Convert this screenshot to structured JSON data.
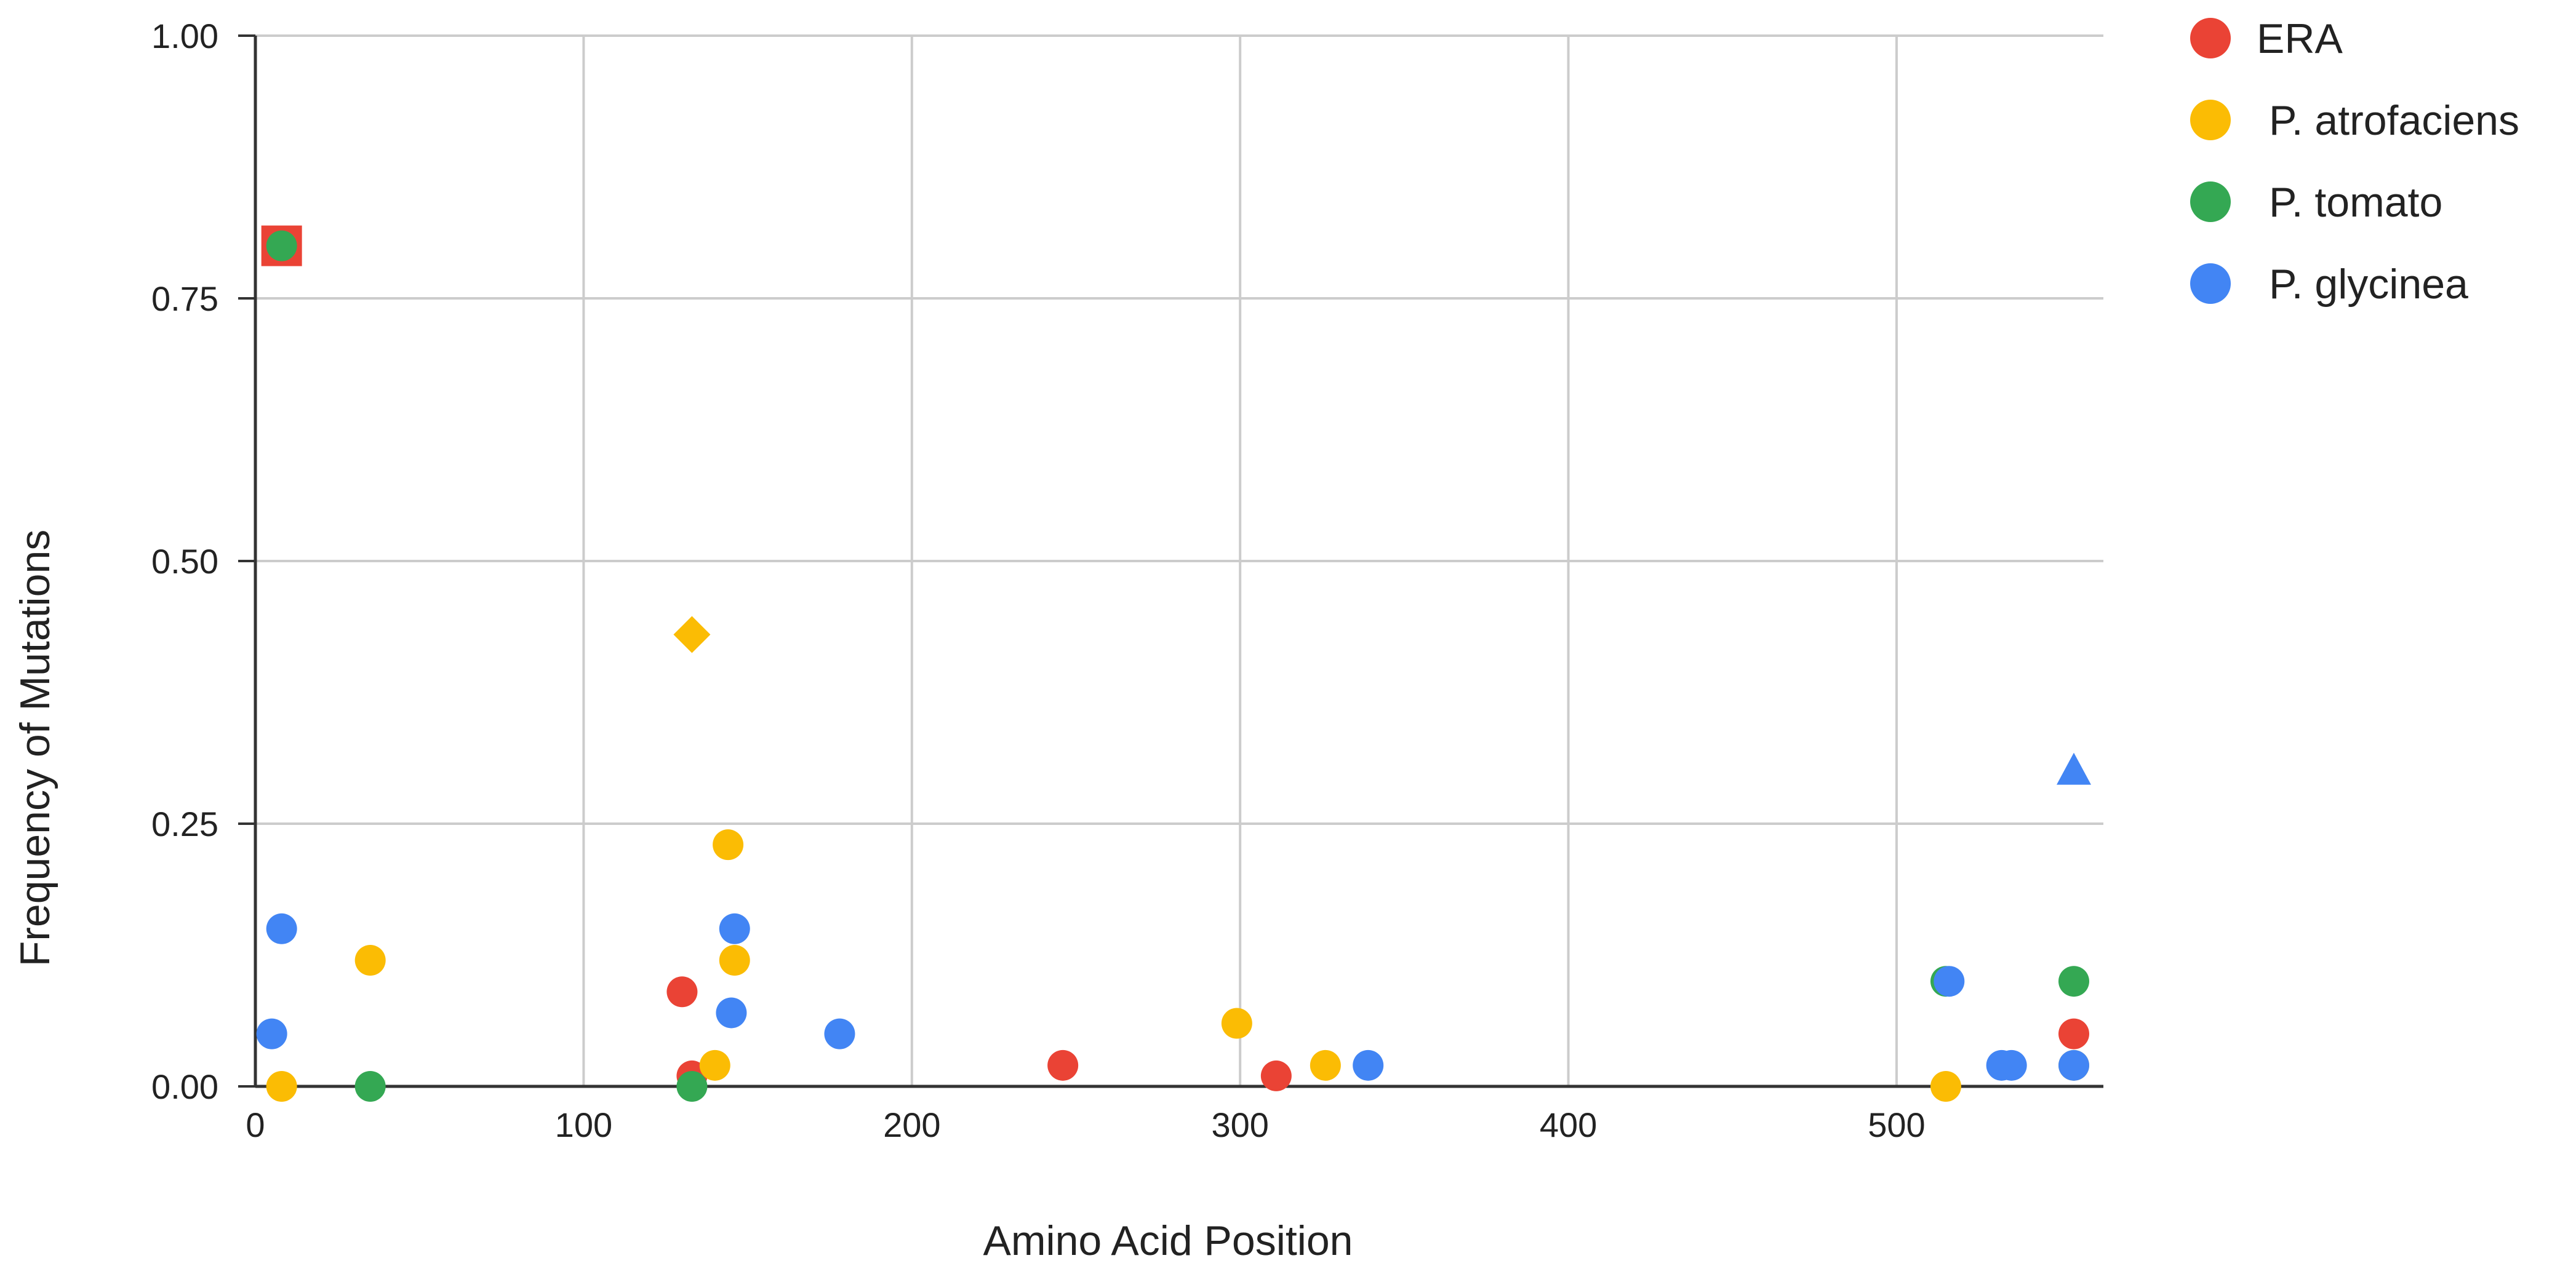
{
  "chart_data": {
    "type": "scatter",
    "xlabel": "Amino Acid Position",
    "ylabel": "Frequency of Mutations",
    "xlim": [
      0,
      563
    ],
    "ylim": [
      0,
      1
    ],
    "x_ticks": [
      0,
      100,
      200,
      300,
      400,
      500
    ],
    "x_tick_labels": [
      "0",
      "100",
      "200",
      "300",
      "400",
      "500"
    ],
    "y_ticks": [
      0,
      0.25,
      0.5,
      0.75,
      1.0
    ],
    "y_tick_labels": [
      "0.00",
      "0.25",
      "0.50",
      "0.75",
      "1.00"
    ],
    "grid": true,
    "legend_position": "top-right",
    "series": [
      {
        "name": "ERA",
        "color": "#EA4335",
        "points": [
          {
            "x": 8,
            "y": 0.8,
            "marker": "square"
          },
          {
            "x": 130,
            "y": 0.09
          },
          {
            "x": 133,
            "y": 0.01
          },
          {
            "x": 246,
            "y": 0.02
          },
          {
            "x": 311,
            "y": 0.01
          },
          {
            "x": 554,
            "y": 0.05
          }
        ]
      },
      {
        "name": "P. atrofaciens",
        "color": "#FBBC04",
        "points": [
          {
            "x": 8,
            "y": 0.0
          },
          {
            "x": 35,
            "y": 0.12
          },
          {
            "x": 133,
            "y": 0.43,
            "marker": "diamond"
          },
          {
            "x": 140,
            "y": 0.02
          },
          {
            "x": 144,
            "y": 0.23
          },
          {
            "x": 146,
            "y": 0.12
          },
          {
            "x": 299,
            "y": 0.06
          },
          {
            "x": 326,
            "y": 0.02
          },
          {
            "x": 515,
            "y": 0.0
          },
          {
            "x": 554,
            "y": 0.02
          }
        ]
      },
      {
        "name": "P. tomato",
        "color": "#34A853",
        "points": [
          {
            "x": 8,
            "y": 0.8
          },
          {
            "x": 35,
            "y": 0.0
          },
          {
            "x": 133,
            "y": 0.0
          },
          {
            "x": 515,
            "y": 0.1
          },
          {
            "x": 554,
            "y": 0.1
          }
        ]
      },
      {
        "name": "P. glycinea",
        "color": "#4285F4",
        "points": [
          {
            "x": 5,
            "y": 0.05
          },
          {
            "x": 8,
            "y": 0.15
          },
          {
            "x": 145,
            "y": 0.07
          },
          {
            "x": 146,
            "y": 0.15
          },
          {
            "x": 178,
            "y": 0.05
          },
          {
            "x": 339,
            "y": 0.02
          },
          {
            "x": 516,
            "y": 0.1
          },
          {
            "x": 532,
            "y": 0.02
          },
          {
            "x": 535,
            "y": 0.02
          },
          {
            "x": 554,
            "y": 0.3,
            "marker": "triangle"
          },
          {
            "x": 554,
            "y": 0.02
          }
        ]
      }
    ]
  },
  "colors": {
    "grid": "#cccccc",
    "axis": "#333333",
    "highlight_border": "#EA4335"
  }
}
